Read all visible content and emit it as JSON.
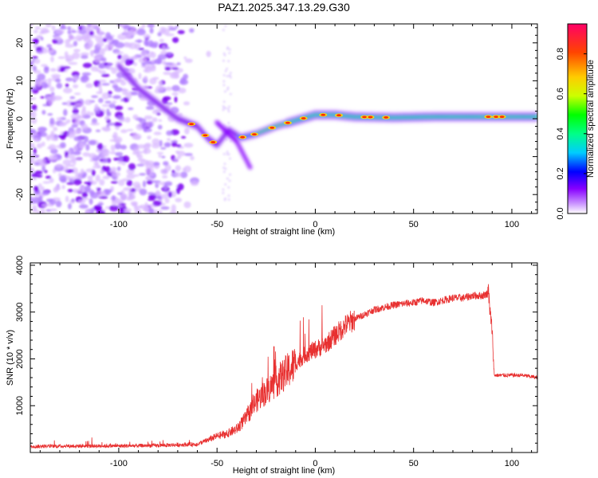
{
  "chart_data": [
    {
      "type": "heatmap",
      "title": "PAZ1.2025.347.13.29.G30",
      "xlabel": "Height of straight line (km)",
      "ylabel": "Frequency (Hz)",
      "xlim": [
        -145,
        113
      ],
      "ylim": [
        -25,
        25
      ],
      "xticks": [
        -100,
        -50,
        0,
        50,
        100
      ],
      "yticks": [
        -20,
        -10,
        0,
        10,
        20
      ],
      "colorbar": {
        "label": "Normalized spectral amplitude",
        "range": [
          0,
          0.95
        ],
        "ticks": [
          0.0,
          0.2,
          0.4,
          0.6,
          0.8
        ],
        "tick_labels": [
          "0.0",
          "0.2",
          "0.4",
          "0.6",
          "0.8"
        ],
        "colors": [
          "#ffffff",
          "#cc99ff",
          "#8800ff",
          "#0000ff",
          "#00ccff",
          "#00ff88",
          "#00ff00",
          "#ccff00",
          "#ffcc00",
          "#ff4400",
          "#ff0066"
        ]
      },
      "ridge_track": [
        {
          "x": -100,
          "y": 14
        },
        {
          "x": -90,
          "y": 8
        },
        {
          "x": -80,
          "y": 4
        },
        {
          "x": -70,
          "y": 0
        },
        {
          "x": -60,
          "y": -2
        },
        {
          "x": -55,
          "y": -5
        },
        {
          "x": -50,
          "y": -7
        },
        {
          "x": -44,
          "y": -3
        },
        {
          "x": -38,
          "y": -5
        },
        {
          "x": -30,
          "y": -4
        },
        {
          "x": -20,
          "y": -2
        },
        {
          "x": -10,
          "y": -0.5
        },
        {
          "x": 0,
          "y": 1
        },
        {
          "x": 10,
          "y": 1
        },
        {
          "x": 20,
          "y": 0.5
        },
        {
          "x": 40,
          "y": 0.3
        },
        {
          "x": 60,
          "y": 0.5
        },
        {
          "x": 80,
          "y": 0.5
        },
        {
          "x": 100,
          "y": 0.5
        },
        {
          "x": 113,
          "y": 0.5
        }
      ],
      "noise_region_x": [
        -145,
        -60
      ],
      "branch_track": [
        {
          "x": -50,
          "y": -1
        },
        {
          "x": -40,
          "y": -6
        },
        {
          "x": -33,
          "y": -13
        }
      ]
    },
    {
      "type": "line",
      "xlabel": "Height of straight line (km)",
      "ylabel": "SNR (10 * v/v)",
      "xlim": [
        -145,
        113
      ],
      "ylim": [
        0,
        4050
      ],
      "xticks": [
        -100,
        -50,
        0,
        50,
        100
      ],
      "yticks": [
        1000,
        2000,
        3000,
        4000
      ],
      "color": "#e83030",
      "series": [
        {
          "name": "SNR",
          "x": [
            -145,
            -120,
            -100,
            -80,
            -60,
            -55,
            -50,
            -45,
            -40,
            -35,
            -30,
            -25,
            -20,
            -15,
            -10,
            -5,
            0,
            5,
            10,
            15,
            20,
            25,
            30,
            35,
            40,
            45,
            50,
            55,
            60,
            65,
            70,
            75,
            80,
            85,
            88,
            90,
            91,
            95,
            100,
            105,
            110,
            113
          ],
          "y": [
            130,
            140,
            140,
            150,
            180,
            260,
            350,
            400,
            500,
            750,
            1100,
            1300,
            1500,
            1700,
            1900,
            2100,
            2200,
            2300,
            2500,
            2700,
            2850,
            2950,
            3050,
            3100,
            3150,
            3180,
            3200,
            3250,
            3200,
            3250,
            3300,
            3300,
            3350,
            3350,
            3400,
            2600,
            1650,
            1650,
            1650,
            1650,
            1620,
            1600
          ]
        }
      ]
    }
  ]
}
